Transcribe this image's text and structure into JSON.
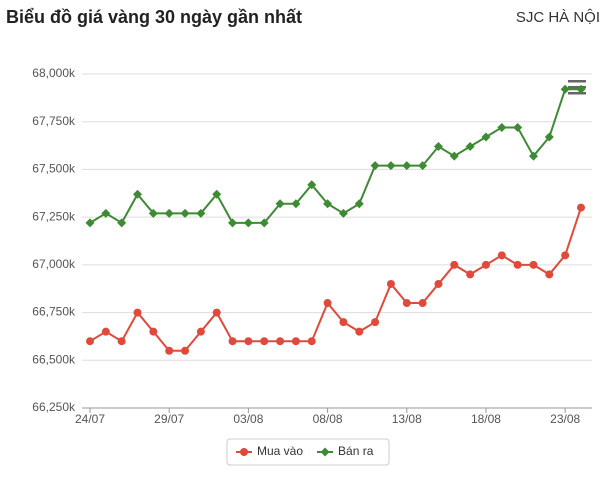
{
  "chart_data": {
    "type": "line",
    "title": "Biểu đồ giá vàng 30 ngày gần nhất",
    "subtitle": "SJC HÀ NỘI",
    "categories": [
      "24/07",
      null,
      null,
      null,
      null,
      "29/07",
      null,
      null,
      null,
      null,
      "03/08",
      null,
      null,
      null,
      null,
      "08/08",
      null,
      null,
      null,
      null,
      "13/08",
      null,
      null,
      null,
      null,
      "18/08",
      null,
      null,
      null,
      null,
      "23/08",
      null
    ],
    "series": [
      {
        "name": "Mua vào",
        "color": "#df4a3b",
        "values": [
          66600,
          66650,
          66600,
          66750,
          66650,
          66550,
          66550,
          66650,
          66750,
          66600,
          66600,
          66600,
          66600,
          66600,
          66600,
          66800,
          66700,
          66650,
          66700,
          66900,
          66800,
          66800,
          66900,
          67000,
          66950,
          67000,
          67050,
          67000,
          67000,
          66950,
          67050,
          67300
        ]
      },
      {
        "name": "Bán ra",
        "color": "#3e8a35",
        "values": [
          67220,
          67270,
          67220,
          67370,
          67270,
          67270,
          67270,
          67270,
          67370,
          67220,
          67220,
          67220,
          67320,
          67320,
          67420,
          67320,
          67270,
          67320,
          67520,
          67520,
          67520,
          67520,
          67620,
          67570,
          67620,
          67670,
          67720,
          67720,
          67570,
          67670,
          67920,
          67920
        ]
      }
    ],
    "ylim": [
      66250,
      68000
    ],
    "yticks": [
      {
        "value": 66250,
        "label": "66,250k"
      },
      {
        "value": 66500,
        "label": "66,500k"
      },
      {
        "value": 66750,
        "label": "66,750k"
      },
      {
        "value": 67000,
        "label": "67,000k"
      },
      {
        "value": 67250,
        "label": "67,250k"
      },
      {
        "value": 67500,
        "label": "67,500k"
      },
      {
        "value": 67750,
        "label": "67,750k"
      },
      {
        "value": 68000,
        "label": "68,000k"
      }
    ],
    "grid": true,
    "legend": "bottom"
  }
}
